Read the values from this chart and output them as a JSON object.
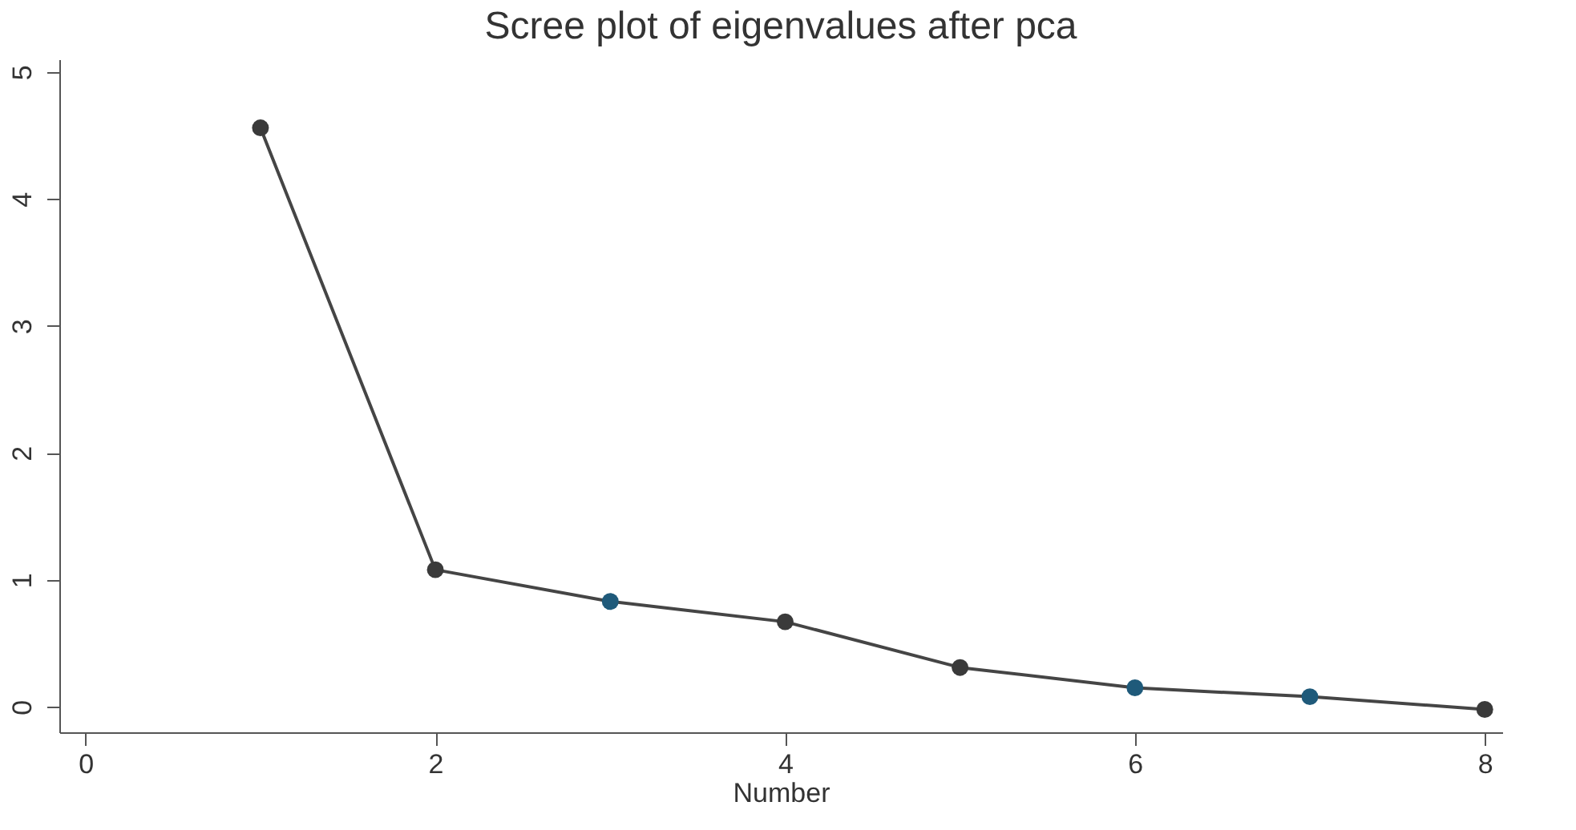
{
  "chart_data": {
    "type": "line",
    "title": "Scree plot of eigenvalues after pca",
    "xlabel": "Number",
    "x": [
      1,
      2,
      3,
      4,
      5,
      6,
      7,
      8
    ],
    "series": [
      {
        "color": "#454545",
        "values": [
          4.56,
          1.08,
          0.83,
          0.67,
          0.31,
          0.15,
          0.08,
          -0.02
        ]
      }
    ],
    "colors": [
      "#3a3a3a",
      "#3a3a3a",
      "#1f5a7a",
      "#3a3a3a",
      "#3a3a3a",
      "#1f5a7a",
      "#1f5a7a",
      "#3a3a3a"
    ],
    "marker": "circle",
    "line_style": "solid",
    "xlim": [
      -0.15,
      8.1
    ],
    "xticks": [
      0,
      2,
      4,
      6,
      8
    ],
    "ylim": [
      -0.2,
      5.1
    ],
    "yticks": [
      0,
      1,
      2,
      3,
      4,
      5
    ]
  }
}
